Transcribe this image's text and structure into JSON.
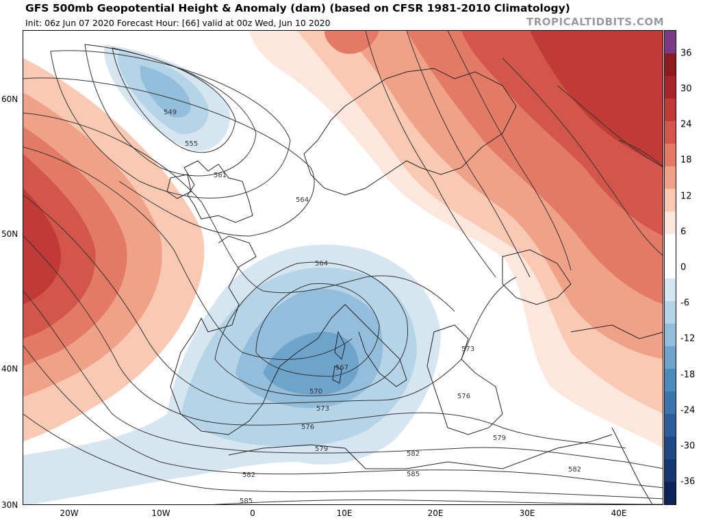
{
  "header": {
    "title": "GFS 500mb Geopotential Height & Anomaly (dam) (based on CFSR 1981-2010 Climatology)",
    "subtitle": "Init: 06z Jun 07 2020   Forecast Hour: [66]   valid at 00z Wed, Jun 10 2020",
    "brand": "TROPICALTIDBITS.COM"
  },
  "axes": {
    "lat_labels": [
      "60N",
      "50N",
      "40N",
      "30N"
    ],
    "lon_labels": [
      "20W",
      "10W",
      "0",
      "10E",
      "20E",
      "30E",
      "40E"
    ]
  },
  "colorbar": {
    "ticks": [
      "36",
      "30",
      "24",
      "18",
      "12",
      "6",
      "0",
      "-6",
      "-12",
      "-18",
      "-24",
      "-30",
      "-36"
    ],
    "colors": [
      "#7b3a86",
      "#8c1a1f",
      "#a5252a",
      "#c03b35",
      "#d2564a",
      "#e27a66",
      "#f0a288",
      "#f9c9b4",
      "#fde7dc",
      "#ffffff",
      "#ffffff",
      "#d6e6f1",
      "#b6d4e7",
      "#92bddb",
      "#6ea4cc",
      "#4e8bbd",
      "#3a75ad",
      "#2a5f9b",
      "#1d4a86",
      "#143672",
      "#0d2458"
    ]
  },
  "contours": {
    "labels": [
      "549",
      "555",
      "561",
      "564",
      "564",
      "567",
      "570",
      "573",
      "573",
      "576",
      "576",
      "579",
      "579",
      "582",
      "582",
      "585",
      "585",
      "582"
    ]
  }
}
